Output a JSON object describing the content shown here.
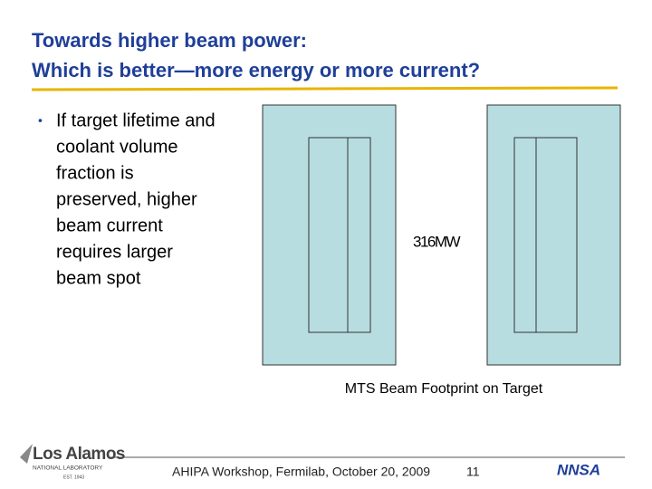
{
  "header": {
    "title_lines": [
      "Towards higher beam power:",
      "Which is better—more energy or more current?"
    ]
  },
  "bullets": [
    {
      "lines": [
        "If target lifetime and",
        "coolant volume",
        "fraction is",
        "preserved, higher",
        "beam current",
        "requires larger",
        "beam spot"
      ]
    }
  ],
  "figure": {
    "label": "316MW",
    "caption": "MTS Beam Footprint on Target"
  },
  "footer": {
    "event": "AHIPA Workshop, Fermilab, October 20, 2009",
    "page": "11",
    "logo_left": {
      "name": "Los Alamos",
      "subtitle": "NATIONAL LABORATORY",
      "established": "EST. 1943"
    },
    "logo_right": {
      "name": "NNSA"
    }
  }
}
